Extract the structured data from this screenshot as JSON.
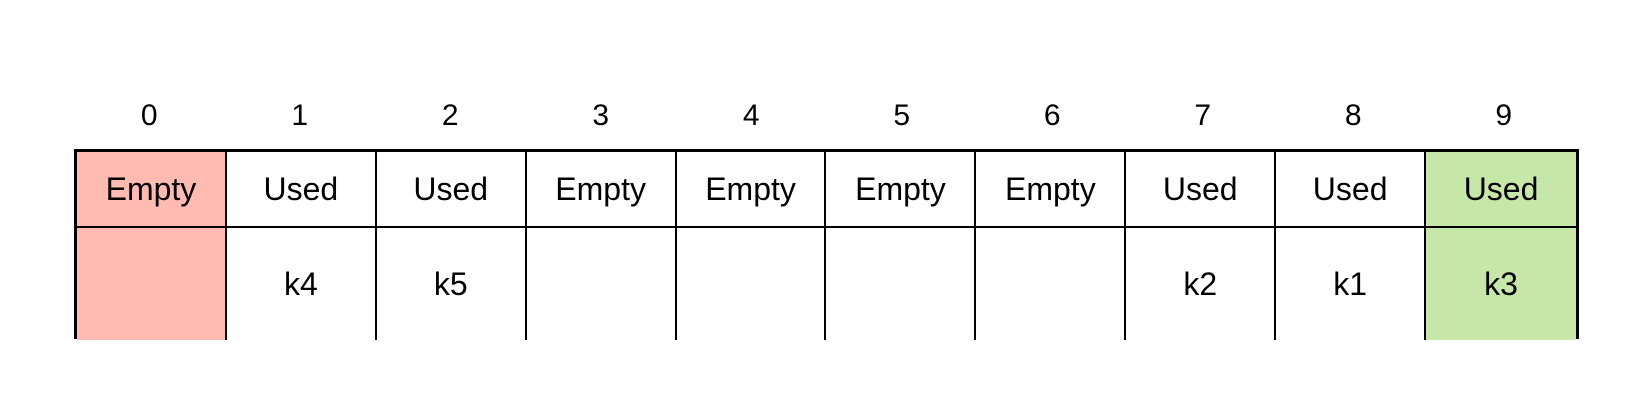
{
  "colors": {
    "empty_highlight": "#ffbbb1",
    "used_highlight": "#c6e7a8",
    "default": "#ffffff",
    "border": "#000000"
  },
  "slots": [
    {
      "index": "0",
      "status": "Empty",
      "key": "",
      "highlight": "empty_highlight"
    },
    {
      "index": "1",
      "status": "Used",
      "key": "k4",
      "highlight": "default"
    },
    {
      "index": "2",
      "status": "Used",
      "key": "k5",
      "highlight": "default"
    },
    {
      "index": "3",
      "status": "Empty",
      "key": "",
      "highlight": "default"
    },
    {
      "index": "4",
      "status": "Empty",
      "key": "",
      "highlight": "default"
    },
    {
      "index": "5",
      "status": "Empty",
      "key": "",
      "highlight": "default"
    },
    {
      "index": "6",
      "status": "Empty",
      "key": "",
      "highlight": "default"
    },
    {
      "index": "7",
      "status": "Used",
      "key": "k2",
      "highlight": "default"
    },
    {
      "index": "8",
      "status": "Used",
      "key": "k1",
      "highlight": "default"
    },
    {
      "index": "9",
      "status": "Used",
      "key": "k3",
      "highlight": "used_highlight"
    }
  ]
}
